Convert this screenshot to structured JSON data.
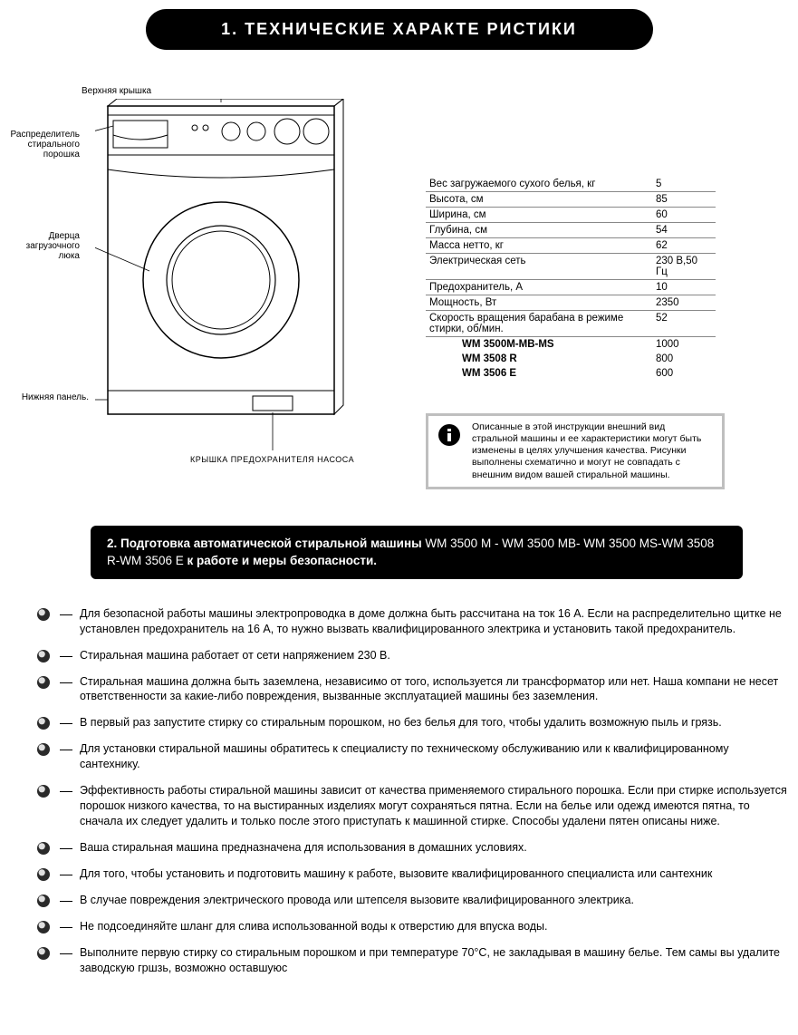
{
  "header1": "1. ТЕХНИЧЕСКИЕ ХАРАКТЕ РИСТИКИ",
  "diagram": {
    "top_label": "Верхняя крышка",
    "dispenser_label": "Распределитель\nстирального\nпорошка",
    "door_label": "Дверца\nзагрузочного\nлюка",
    "bottom_panel_label": "Нижняя панель.",
    "pump_cover_label": "КРЫШКА ПРЕДОХРАНИТЕЛЯ НАСОСА"
  },
  "specs": [
    {
      "name": "Вес загружаемого сухого белья, кг",
      "value": "5"
    },
    {
      "name": "Высота, см",
      "value": "85"
    },
    {
      "name": "Ширина, см",
      "value": "60"
    },
    {
      "name": "Глубина, см",
      "value": "54"
    },
    {
      "name": "Масса нетто, кг",
      "value": "62"
    },
    {
      "name": "Электрическая сеть",
      "value": "230 В,50 Гц"
    },
    {
      "name": "Предохранитель, А",
      "value": "10"
    },
    {
      "name": "Мощность, Вт",
      "value": "2350"
    },
    {
      "name": "Скорость вращения барабана в режиме стирки, об/мин.",
      "value": "52"
    }
  ],
  "spec_models": [
    {
      "name": "WM 3500M-MB-MS",
      "value": "1000"
    },
    {
      "name": "WM 3508 R",
      "value": "800"
    },
    {
      "name": "WM 3506 E",
      "value": "600"
    }
  ],
  "info_text": "Описанные в этой инструкции внешний вид стральной машины и ее характеристики могут быть изменены в целях улучшения качества. Рисунки выполнены схематично и могут не совпадать с внешним видом вашей стиральной машины.",
  "header2_part1": "2. Подготовка автоматической стиральной машины ",
  "header2_models": "WM 3500 M - WM 3500 MB- WM 3500 MS-WM 3508 R-WM 3506 E ",
  "header2_part2": "к работе и меры безопасности.",
  "safety": [
    "Для безопасной работы машины электропроводка в доме должна быть рассчитана на ток 16 А. Если на распределительно щитке не установлен предохранитель на 16 А, то нужно вызвать квалифицированного электрика и установить такой предохранитель.",
    "Стиральная машина работает от сети напряжением 230 В.",
    "Стиральная машина должна быть заземлена, независимо от того, используется ли трансформатор или нет. Наша компани не несет ответственности за какие-либо повреждения, вызванные эксплуатацией машины без заземления.",
    "В первый раз запустите стирку со стиральным порошком, но без белья для того, чтобы удалить возможную пыль и грязь.",
    "Для установки стиральной машины обратитесь к специалисту по техническому обслуживанию или к квалифицированному сантехнику.",
    "Эффективность работы стиральной машины зависит от качества применяемого стирального порошка. Если при стирке используется порошок низкого качества, то на выстиранных изделиях могут сохраняться пятна. Если на белье или одежд имеются пятна, то сначала их  следует удалить и только после этого приступать к машинной стирке. Способы удалени пятен описаны ниже.",
    "Ваша стиральная машина предназначена для использования в домашних условиях.",
    "Для того, чтобы установить и подготовить машину к работе, вызовите квалифицированного специалиста или сантехник",
    "В случае повреждения электрического провода или штепселя вызовите квалифицированного электрика.",
    "Не подсоединяйте шланг для слива использованной воды к отверстию для впуска воды.",
    "Выполните первую стирку со стиральным порошком и при температуре 70°C, не закладывая в машину белье. Тем самы вы удалите заводскую гршзь, возможно оставшуюс"
  ],
  "colors": {
    "pill_bg": "#000000",
    "pill_fg": "#ffffff",
    "info_border": "#bfbfbf",
    "bullet_dark": "#2a2a2a",
    "bullet_light": "#ffffff"
  }
}
